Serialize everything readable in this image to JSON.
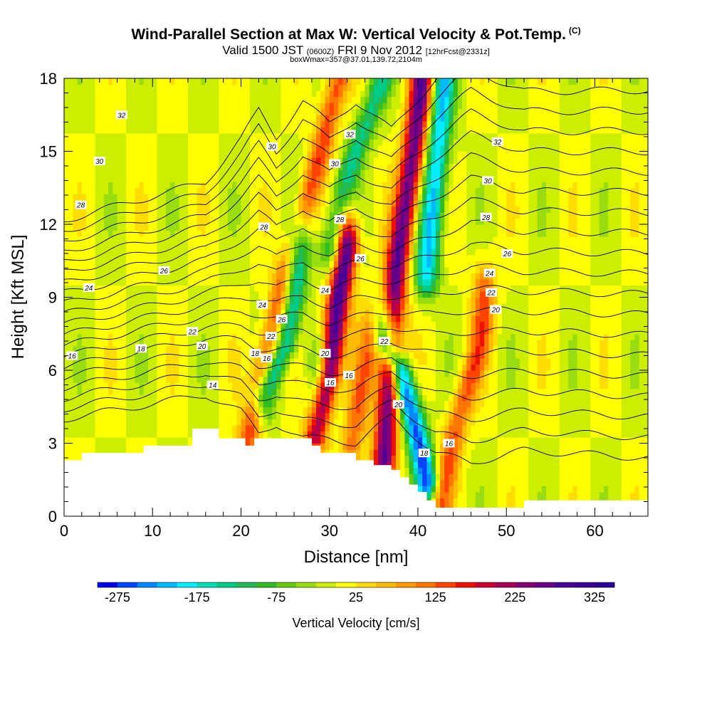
{
  "title": {
    "main": "Wind-Parallel Section at Max W: Vertical Velocity & Pot.Temp.",
    "copyright": "(C)",
    "valid_a": "Valid 1500 JST",
    "valid_tz": "(0600Z)",
    "valid_b": "FRI 9 Nov 2012",
    "valid_fcst": "[12hrFcst@2331z]",
    "box": "boxWmax=357@37.01,139.72,2104m"
  },
  "chart_data": {
    "type": "heatmap",
    "xlabel": "Distance [nm]",
    "ylabel": "Height [Kft MSL]",
    "xlim": [
      0,
      66
    ],
    "ylim": [
      0,
      18
    ],
    "x_ticks": [
      0,
      10,
      20,
      30,
      40,
      50,
      60
    ],
    "y_ticks": [
      0,
      3,
      6,
      9,
      12,
      15,
      18
    ],
    "colorbar": {
      "label": "Vertical Velocity [cm/s]",
      "tick_labels": [
        "-275",
        "-175",
        "-75",
        "25",
        "125",
        "225",
        "325"
      ],
      "min": -300,
      "max": 350,
      "step": 25,
      "colors": [
        "#0000ee",
        "#0044ff",
        "#0088ff",
        "#00bbff",
        "#00eeff",
        "#00ddbb",
        "#00cc88",
        "#22bb55",
        "#33bb22",
        "#66cc11",
        "#99dd11",
        "#ccee00",
        "#ffff00",
        "#ffdd00",
        "#ffbb00",
        "#ff9900",
        "#ff7700",
        "#ff4400",
        "#ee1100",
        "#cc0033",
        "#aa0055",
        "#880077",
        "#660088",
        "#4b0096",
        "#3a0099",
        "#2a0099"
      ]
    },
    "background_w": 0,
    "updraft_bands": [
      {
        "x": [
          20.5,
          25,
          29,
          31
        ],
        "y": [
          2.7,
          10,
          15,
          18
        ],
        "w": 140
      },
      {
        "x": [
          28.5,
          30,
          31,
          32
        ],
        "y": [
          3.4,
          6,
          9,
          11
        ],
        "w": 300
      },
      {
        "x": [
          36.2,
          37.5,
          39.5,
          40.5
        ],
        "y": [
          2.4,
          10,
          15,
          18
        ],
        "w": 270
      },
      {
        "x": [
          42.5,
          44.5,
          47,
          47.5
        ],
        "y": [
          0.6,
          4,
          7,
          9
        ],
        "w": 130
      },
      {
        "x": [
          32.5,
          33.5,
          34.5
        ],
        "y": [
          2.8,
          5,
          7
        ],
        "w": 110
      }
    ],
    "downdraft_bands": [
      {
        "x": [
          22.5,
          25,
          26,
          26.5
        ],
        "y": [
          5,
          7,
          9,
          11
        ],
        "w": -170
      },
      {
        "x": [
          30,
          32,
          34,
          36
        ],
        "y": [
          11,
          14,
          16,
          18
        ],
        "w": -130
      },
      {
        "x": [
          36.5,
          38,
          39.5,
          41
        ],
        "y": [
          7,
          6,
          4,
          1.5
        ],
        "w": -260
      },
      {
        "x": [
          41,
          42,
          42.5,
          43
        ],
        "y": [
          10,
          14,
          16,
          18
        ],
        "w": -200
      },
      {
        "x": [
          28.6,
          28.8
        ],
        "y": [
          3,
          6
        ],
        "w": -90
      }
    ],
    "terrain": {
      "x": [
        0,
        2,
        2,
        9,
        9,
        14.5,
        14.5,
        17.5,
        17.5,
        20.5,
        20.5,
        21.5,
        21.5,
        28,
        28,
        29,
        29,
        33,
        33,
        35,
        35,
        37,
        37,
        38,
        38,
        39,
        39,
        40,
        40,
        41,
        41,
        42,
        42,
        52,
        52,
        66
      ],
      "y": [
        2.3,
        2.3,
        2.6,
        2.6,
        2.9,
        2.9,
        3.6,
        3.6,
        3.2,
        3.2,
        2.9,
        2.9,
        3.2,
        3.2,
        2.9,
        2.9,
        2.6,
        2.6,
        2.3,
        2.3,
        2.1,
        2.1,
        1.9,
        1.9,
        1.6,
        1.6,
        1.3,
        1.3,
        1.0,
        1.0,
        0.65,
        0.65,
        0.35,
        0.35,
        0.65,
        0.65
      ]
    },
    "theta_contours": {
      "levels": [
        14,
        15,
        16,
        17,
        18,
        19,
        20,
        21,
        22,
        23,
        24,
        25,
        26,
        27,
        28,
        29,
        30,
        31,
        32,
        33
      ],
      "x": [
        0,
        16,
        20,
        22,
        24,
        27,
        30,
        33,
        37,
        42,
        46,
        52,
        66
      ],
      "h0": [
        4.0,
        5.0,
        4.3,
        3.4,
        3.8,
        3.2,
        3.2,
        3.0,
        4.1,
        2.6,
        2.2,
        2.7,
        2.4
      ],
      "slope": [
        0.43,
        0.46,
        0.59,
        0.7,
        0.62,
        0.73,
        0.68,
        0.74,
        0.62,
        0.81,
        0.9,
        0.82,
        0.84
      ],
      "labels": [
        {
          "text": "32",
          "x": 6.5,
          "y": 16.5
        },
        {
          "text": "30",
          "x": 4,
          "y": 14.6
        },
        {
          "text": "28",
          "x": 1.9,
          "y": 12.8
        },
        {
          "text": "26",
          "x": 11.3,
          "y": 10.1
        },
        {
          "text": "24",
          "x": 2.8,
          "y": 9.4
        },
        {
          "text": "22",
          "x": 14.5,
          "y": 7.6
        },
        {
          "text": "20",
          "x": 15.6,
          "y": 7.0
        },
        {
          "text": "18",
          "x": 8.7,
          "y": 6.9
        },
        {
          "text": "16",
          "x": 0.9,
          "y": 6.6
        },
        {
          "text": "14",
          "x": 16.8,
          "y": 5.4
        },
        {
          "text": "18",
          "x": 21.6,
          "y": 6.7
        },
        {
          "text": "16",
          "x": 22.9,
          "y": 6.5
        },
        {
          "text": "22",
          "x": 23.4,
          "y": 7.4
        },
        {
          "text": "24",
          "x": 22.4,
          "y": 8.7
        },
        {
          "text": "26",
          "x": 24.6,
          "y": 8.1
        },
        {
          "text": "28",
          "x": 22.6,
          "y": 11.9
        },
        {
          "text": "30",
          "x": 23.5,
          "y": 15.2
        },
        {
          "text": "24",
          "x": 29.5,
          "y": 9.3
        },
        {
          "text": "20",
          "x": 29.5,
          "y": 6.7
        },
        {
          "text": "16",
          "x": 30.1,
          "y": 5.5
        },
        {
          "text": "16",
          "x": 32.2,
          "y": 5.8
        },
        {
          "text": "30",
          "x": 30.6,
          "y": 14.5
        },
        {
          "text": "28",
          "x": 31.2,
          "y": 12.2
        },
        {
          "text": "32",
          "x": 32.3,
          "y": 15.7
        },
        {
          "text": "26",
          "x": 33.5,
          "y": 10.6
        },
        {
          "text": "22",
          "x": 36.2,
          "y": 7.2
        },
        {
          "text": "20",
          "x": 37.8,
          "y": 4.6
        },
        {
          "text": "18",
          "x": 40.7,
          "y": 2.6
        },
        {
          "text": "16",
          "x": 43.5,
          "y": 3.0
        },
        {
          "text": "32",
          "x": 49,
          "y": 15.4
        },
        {
          "text": "30",
          "x": 47.9,
          "y": 13.8
        },
        {
          "text": "28",
          "x": 47.7,
          "y": 12.3
        },
        {
          "text": "26",
          "x": 50.1,
          "y": 10.8
        },
        {
          "text": "24",
          "x": 48.1,
          "y": 10.0
        },
        {
          "text": "22",
          "x": 48.3,
          "y": 9.2
        },
        {
          "text": "20",
          "x": 48.8,
          "y": 8.5
        }
      ]
    }
  }
}
